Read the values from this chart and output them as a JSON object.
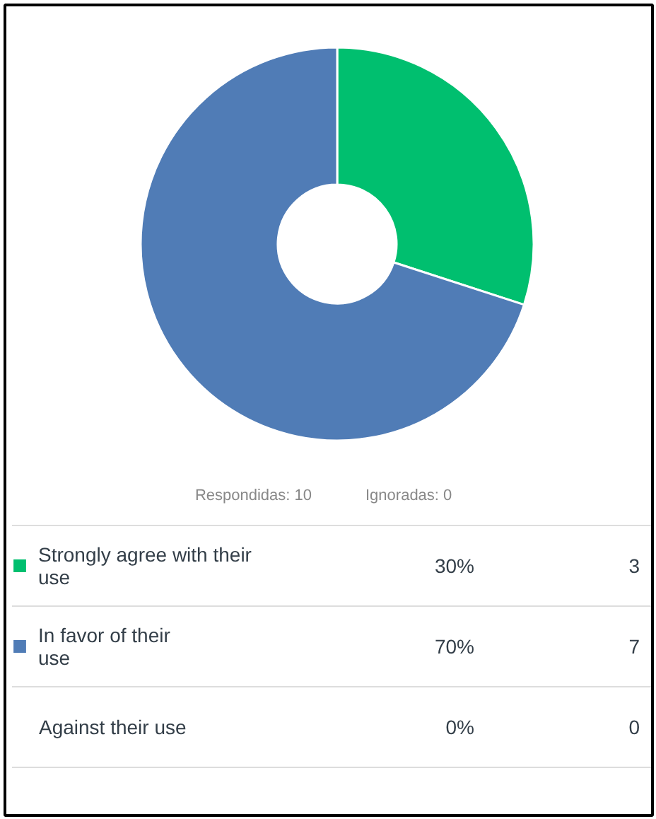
{
  "chart_data": {
    "type": "donut",
    "categories": [
      "Strongly agree with their use",
      "In favor of their use",
      "Against their use"
    ],
    "values": [
      30,
      70,
      0
    ],
    "legend": "bottom",
    "colors": [
      "#00bf6f",
      "#507cb6",
      null
    ],
    "value_labels": [
      "30%",
      "70%",
      "0%"
    ],
    "annotations": [
      "Respondidas: 10",
      "Ignoradas: 0",
      "3",
      "7",
      "0"
    ]
  }
}
